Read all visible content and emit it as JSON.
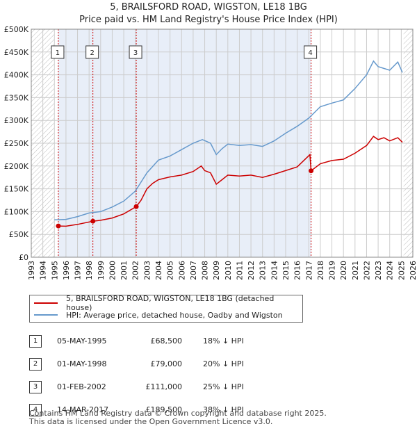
{
  "header": {
    "title": "5, BRAILSFORD ROAD, WIGSTON, LE18 1BG",
    "subtitle": "Price paid vs. HM Land Registry's House Price Index (HPI)"
  },
  "colors": {
    "red": "#cc0000",
    "blue": "#6699cc",
    "band": "#e8eef8",
    "grid": "#cccccc"
  },
  "chart_data": {
    "type": "line",
    "xlim": [
      1993,
      2026
    ],
    "ylim": [
      0,
      500000
    ],
    "x_ticks": [
      "1993",
      "1994",
      "1995",
      "1996",
      "1997",
      "1998",
      "1999",
      "2000",
      "2001",
      "2002",
      "2003",
      "2004",
      "2005",
      "2006",
      "2007",
      "2008",
      "2009",
      "2010",
      "2011",
      "2012",
      "2013",
      "2014",
      "2015",
      "2016",
      "2017",
      "2018",
      "2019",
      "2020",
      "2021",
      "2022",
      "2023",
      "2024",
      "2025",
      "2026"
    ],
    "y_ticks": [
      {
        "v": 0,
        "label": "£0"
      },
      {
        "v": 50000,
        "label": "£50K"
      },
      {
        "v": 100000,
        "label": "£100K"
      },
      {
        "v": 150000,
        "label": "£150K"
      },
      {
        "v": 200000,
        "label": "£200K"
      },
      {
        "v": 250000,
        "label": "£250K"
      },
      {
        "v": 300000,
        "label": "£300K"
      },
      {
        "v": 350000,
        "label": "£350K"
      },
      {
        "v": 400000,
        "label": "£400K"
      },
      {
        "v": 450000,
        "label": "£450K"
      },
      {
        "v": 500000,
        "label": "£500K"
      }
    ],
    "hatch_ranges": [
      [
        1993,
        1995
      ],
      [
        2025.2,
        2026
      ]
    ],
    "series": [
      {
        "name": "5, BRAILSFORD ROAD, WIGSTON, LE18 1BG (detached house)",
        "color": "#cc0000",
        "points": [
          [
            1995.34,
            68500
          ],
          [
            1996,
            68000
          ],
          [
            1997,
            72000
          ],
          [
            1998.33,
            79000
          ],
          [
            1999,
            81000
          ],
          [
            2000,
            86000
          ],
          [
            2001,
            95000
          ],
          [
            2002.08,
            111000
          ],
          [
            2002.5,
            125000
          ],
          [
            2003,
            150000
          ],
          [
            2003.5,
            162000
          ],
          [
            2004,
            170000
          ],
          [
            2005,
            176000
          ],
          [
            2006,
            180000
          ],
          [
            2007,
            188000
          ],
          [
            2007.7,
            200000
          ],
          [
            2008,
            190000
          ],
          [
            2008.5,
            185000
          ],
          [
            2009,
            160000
          ],
          [
            2009.5,
            170000
          ],
          [
            2010,
            180000
          ],
          [
            2011,
            178000
          ],
          [
            2012,
            180000
          ],
          [
            2013,
            175000
          ],
          [
            2014,
            182000
          ],
          [
            2015,
            190000
          ],
          [
            2016,
            198000
          ],
          [
            2017.1,
            225000
          ],
          [
            2017.2,
            189500
          ],
          [
            2018,
            205000
          ],
          [
            2019,
            212000
          ],
          [
            2020,
            215000
          ],
          [
            2021,
            228000
          ],
          [
            2022,
            245000
          ],
          [
            2022.6,
            265000
          ],
          [
            2023,
            258000
          ],
          [
            2023.5,
            262000
          ],
          [
            2024,
            255000
          ],
          [
            2024.7,
            262000
          ],
          [
            2025.1,
            252000
          ]
        ]
      },
      {
        "name": "HPI: Average price, detached house, Oadby and Wigston",
        "color": "#6699cc",
        "points": [
          [
            1995,
            82000
          ],
          [
            1996,
            83000
          ],
          [
            1997,
            89000
          ],
          [
            1998,
            97000
          ],
          [
            1999,
            100000
          ],
          [
            2000,
            110000
          ],
          [
            2001,
            123000
          ],
          [
            2002,
            145000
          ],
          [
            2003,
            185000
          ],
          [
            2004,
            213000
          ],
          [
            2005,
            222000
          ],
          [
            2006,
            236000
          ],
          [
            2007,
            250000
          ],
          [
            2007.8,
            258000
          ],
          [
            2008.5,
            250000
          ],
          [
            2009,
            225000
          ],
          [
            2009.5,
            238000
          ],
          [
            2010,
            248000
          ],
          [
            2011,
            245000
          ],
          [
            2012,
            247000
          ],
          [
            2013,
            243000
          ],
          [
            2014,
            255000
          ],
          [
            2015,
            272000
          ],
          [
            2016,
            287000
          ],
          [
            2017,
            305000
          ],
          [
            2018,
            330000
          ],
          [
            2019,
            338000
          ],
          [
            2020,
            345000
          ],
          [
            2021,
            370000
          ],
          [
            2022,
            400000
          ],
          [
            2022.6,
            430000
          ],
          [
            2023,
            418000
          ],
          [
            2024,
            410000
          ],
          [
            2024.7,
            428000
          ],
          [
            2025.1,
            405000
          ]
        ]
      }
    ],
    "sales": [
      {
        "id": "1",
        "year": 1995.34,
        "value": 68500
      },
      {
        "id": "2",
        "year": 1998.33,
        "value": 79000
      },
      {
        "id": "3",
        "year": 2002.08,
        "value": 111000
      },
      {
        "id": "4",
        "year": 2017.2,
        "value": 189500
      }
    ]
  },
  "legend": {
    "red_label": "5, BRAILSFORD ROAD, WIGSTON, LE18 1BG (detached house)",
    "blue_label": "HPI: Average price, detached house, Oadby and Wigston"
  },
  "table": [
    {
      "num": "1",
      "date": "05-MAY-1995",
      "price": "£68,500",
      "hpi": "18% ↓ HPI"
    },
    {
      "num": "2",
      "date": "01-MAY-1998",
      "price": "£79,000",
      "hpi": "20% ↓ HPI"
    },
    {
      "num": "3",
      "date": "01-FEB-2002",
      "price": "£111,000",
      "hpi": "25% ↓ HPI"
    },
    {
      "num": "4",
      "date": "14-MAR-2017",
      "price": "£189,500",
      "hpi": "38% ↓ HPI"
    }
  ],
  "footer": {
    "line1": "Contains HM Land Registry data © Crown copyright and database right 2025.",
    "line2": "This data is licensed under the Open Government Licence v3.0."
  }
}
